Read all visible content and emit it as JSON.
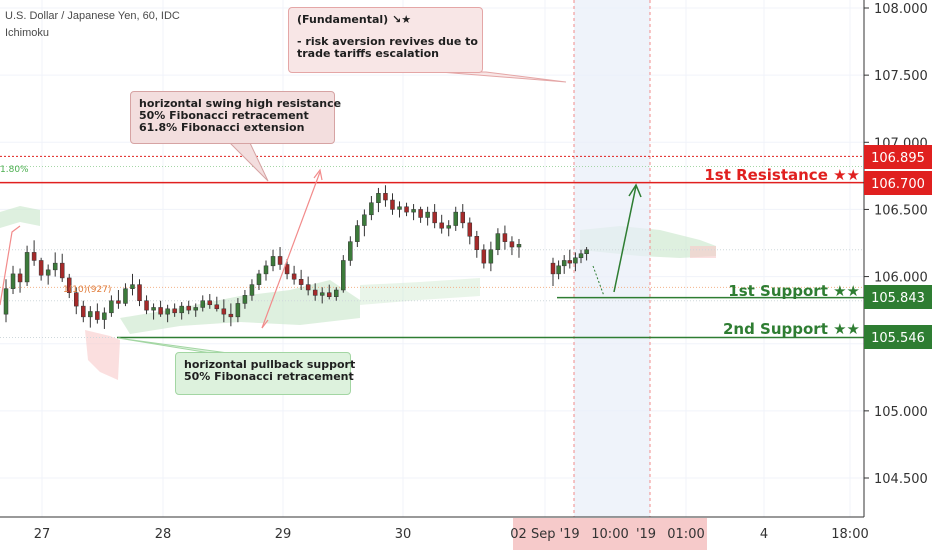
{
  "header": {
    "title": "U.S. Dollar / Japanese Yen, 60, IDC",
    "indicator": "Ichimoku"
  },
  "annotations": {
    "fundamental": [
      "(Fundamental) ↘★",
      "",
      "- risk aversion revives due to",
      "trade tariffs escalation"
    ],
    "resistance_note": [
      "horizontal swing high resistance",
      "50% Fibonacci retracement",
      "61.8% Fibonacci extension"
    ],
    "support_note": [
      "horizontal pullback support",
      "50% Fibonacci retracement"
    ],
    "fib_small_1": "1.80%",
    "fib_small_2": "1(10)(927)"
  },
  "levels": {
    "resistance_upper": {
      "value": "106.895",
      "color": "#e0201f"
    },
    "resistance_1": {
      "value": "106.700",
      "label": "1st Resistance ★★",
      "color": "#e0201f"
    },
    "support_1": {
      "value": "105.843",
      "label": "1st Support ★★",
      "color": "#2e7d32"
    },
    "support_2": {
      "value": "105.546",
      "label": "2nd Support ★★",
      "color": "#2e7d32"
    }
  },
  "x_axis": {
    "labels": [
      "27",
      "28",
      "29",
      "30",
      "02 Sep '19",
      "10:00",
      "'19",
      "01:00",
      "4",
      "18:00"
    ]
  },
  "chart_data": {
    "type": "candlestick",
    "title": "U.S. Dollar / Japanese Yen, 60, IDC",
    "ylim": [
      104.25,
      108.05
    ],
    "yticks": [
      104.5,
      105.0,
      105.5,
      106.0,
      106.5,
      107.0,
      107.5,
      108.0
    ],
    "ytick_labels": [
      "104.500",
      "105.000",
      "105.500",
      "106.000",
      "106.500",
      "107.000",
      "107.500",
      "108.000"
    ],
    "x_labels": [
      "27",
      "28",
      "29",
      "30",
      "02 Sep '19",
      "10:00",
      "'19",
      "01:00",
      "4",
      "18:00"
    ],
    "candles": [
      [
        105.72,
        105.98,
        105.66,
        105.91
      ],
      [
        105.91,
        106.08,
        105.87,
        106.02
      ],
      [
        106.02,
        106.06,
        105.88,
        105.96
      ],
      [
        105.96,
        106.23,
        105.93,
        106.18
      ],
      [
        106.18,
        106.27,
        106.08,
        106.12
      ],
      [
        106.12,
        106.14,
        105.97,
        106.01
      ],
      [
        106.01,
        106.09,
        105.94,
        106.05
      ],
      [
        106.05,
        106.18,
        106.0,
        106.1
      ],
      [
        106.1,
        106.17,
        105.96,
        105.99
      ],
      [
        105.99,
        106.02,
        105.84,
        105.88
      ],
      [
        105.88,
        105.92,
        105.72,
        105.78
      ],
      [
        105.78,
        105.82,
        105.66,
        105.7
      ],
      [
        105.7,
        105.78,
        105.62,
        105.74
      ],
      [
        105.74,
        105.8,
        105.65,
        105.68
      ],
      [
        105.68,
        105.77,
        105.61,
        105.73
      ],
      [
        105.73,
        105.86,
        105.7,
        105.82
      ],
      [
        105.82,
        105.9,
        105.76,
        105.8
      ],
      [
        105.8,
        105.95,
        105.78,
        105.91
      ],
      [
        105.91,
        106.02,
        105.86,
        105.94
      ],
      [
        105.94,
        105.98,
        105.78,
        105.82
      ],
      [
        105.82,
        105.86,
        105.72,
        105.75
      ],
      [
        105.75,
        105.8,
        105.68,
        105.77
      ],
      [
        105.77,
        105.82,
        105.7,
        105.72
      ],
      [
        105.72,
        105.79,
        105.66,
        105.76
      ],
      [
        105.76,
        105.8,
        105.7,
        105.73
      ],
      [
        105.73,
        105.81,
        105.68,
        105.78
      ],
      [
        105.78,
        105.82,
        105.72,
        105.75
      ],
      [
        105.75,
        105.8,
        105.7,
        105.77
      ],
      [
        105.77,
        105.86,
        105.74,
        105.82
      ],
      [
        105.82,
        105.87,
        105.76,
        105.79
      ],
      [
        105.79,
        105.85,
        105.74,
        105.76
      ],
      [
        105.76,
        105.83,
        105.66,
        105.72
      ],
      [
        105.72,
        105.8,
        105.63,
        105.7
      ],
      [
        105.7,
        105.84,
        105.66,
        105.8
      ],
      [
        105.8,
        105.9,
        105.76,
        105.86
      ],
      [
        105.86,
        105.98,
        105.82,
        105.94
      ],
      [
        105.94,
        106.05,
        105.9,
        106.02
      ],
      [
        106.02,
        106.12,
        105.97,
        106.08
      ],
      [
        106.08,
        106.2,
        106.04,
        106.15
      ],
      [
        106.15,
        106.22,
        106.05,
        106.09
      ],
      [
        106.09,
        106.13,
        105.98,
        106.02
      ],
      [
        106.02,
        106.08,
        105.94,
        105.98
      ],
      [
        105.98,
        106.05,
        105.9,
        105.94
      ],
      [
        105.94,
        106.0,
        105.86,
        105.9
      ],
      [
        105.9,
        105.95,
        105.82,
        105.86
      ],
      [
        105.86,
        105.92,
        105.8,
        105.88
      ],
      [
        105.88,
        105.94,
        105.83,
        105.85
      ],
      [
        105.85,
        105.92,
        105.82,
        105.9
      ],
      [
        105.9,
        106.16,
        105.88,
        106.12
      ],
      [
        106.12,
        106.3,
        106.08,
        106.26
      ],
      [
        106.26,
        106.42,
        106.22,
        106.38
      ],
      [
        106.38,
        106.5,
        106.3,
        106.46
      ],
      [
        106.46,
        106.6,
        106.42,
        106.55
      ],
      [
        106.55,
        106.66,
        106.48,
        106.62
      ],
      [
        106.62,
        106.68,
        106.52,
        106.57
      ],
      [
        106.57,
        106.62,
        106.46,
        106.5
      ],
      [
        106.5,
        106.56,
        106.44,
        106.52
      ],
      [
        106.52,
        106.55,
        106.45,
        106.48
      ],
      [
        106.48,
        106.54,
        106.42,
        106.5
      ],
      [
        106.5,
        106.52,
        106.4,
        106.44
      ],
      [
        106.44,
        106.52,
        106.38,
        106.48
      ],
      [
        106.48,
        106.54,
        106.36,
        106.4
      ],
      [
        106.4,
        106.46,
        106.32,
        106.36
      ],
      [
        106.36,
        106.42,
        106.3,
        106.38
      ],
      [
        106.38,
        106.52,
        106.34,
        106.48
      ],
      [
        106.48,
        106.54,
        106.36,
        106.4
      ],
      [
        106.4,
        106.44,
        106.24,
        106.3
      ],
      [
        106.3,
        106.34,
        106.14,
        106.2
      ],
      [
        106.2,
        106.24,
        106.06,
        106.1
      ],
      [
        106.1,
        106.26,
        106.04,
        106.2
      ],
      [
        106.2,
        106.36,
        106.16,
        106.32
      ],
      [
        106.32,
        106.38,
        106.2,
        106.26
      ],
      [
        106.26,
        106.3,
        106.16,
        106.22
      ],
      [
        106.22,
        106.28,
        106.14,
        106.24
      ]
    ],
    "candles_after_gap": [
      [
        106.1,
        106.14,
        105.93,
        106.02
      ],
      [
        106.02,
        106.12,
        105.98,
        106.08
      ],
      [
        106.08,
        106.16,
        106.02,
        106.12
      ],
      [
        106.12,
        106.2,
        106.06,
        106.1
      ],
      [
        106.1,
        106.18,
        106.04,
        106.14
      ],
      [
        106.14,
        106.2,
        106.1,
        106.17
      ],
      [
        106.17,
        106.22,
        106.12,
        106.2
      ]
    ],
    "horizontal_levels": [
      106.895,
      106.7,
      105.843,
      105.546
    ]
  }
}
